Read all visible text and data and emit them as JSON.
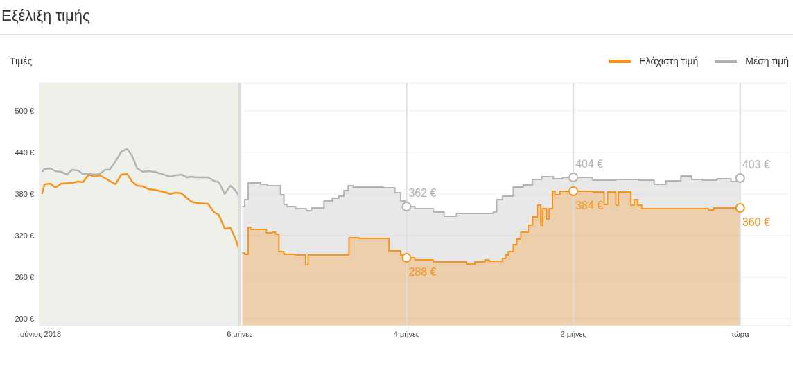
{
  "chart_data": {
    "type": "area",
    "title": "Εξέλιξη τιμής",
    "ylabel": "Τιμές",
    "xlim": [
      -8.4,
      0.6
    ],
    "xticks": [
      {
        "value": -8.4,
        "label": "Ιούνιος 2018"
      },
      {
        "value": -6,
        "label": "6 μήνες"
      },
      {
        "value": -4,
        "label": "4 μήνες"
      },
      {
        "value": -2,
        "label": "2 μήνες"
      },
      {
        "value": 0,
        "label": "τώρα"
      }
    ],
    "ylim": [
      190,
      540
    ],
    "yticks": [
      {
        "value": 200,
        "label": "200 €"
      },
      {
        "value": 260,
        "label": "260 €"
      },
      {
        "value": 320,
        "label": "320 €"
      },
      {
        "value": 380,
        "label": "380 €"
      },
      {
        "value": 440,
        "label": "440 €"
      },
      {
        "value": 500,
        "label": "500 €"
      }
    ],
    "grid": true,
    "legend": "top right",
    "bands": [
      {
        "axis": "x",
        "from": -8.4,
        "to": -6,
        "color": "#f0f0eb"
      }
    ],
    "ref_lines": [
      {
        "axis": "x",
        "value": -6,
        "color": "#dddddd"
      },
      {
        "axis": "x",
        "value": -4,
        "color": "#dddddd"
      },
      {
        "axis": "x",
        "value": -2,
        "color": "#dddddd"
      },
      {
        "axis": "x",
        "value": 0,
        "color": "#dddddd"
      }
    ],
    "annotations": [
      {
        "text": "362 €",
        "x": -4,
        "y": 362
      },
      {
        "text": "288 €",
        "x": -4,
        "y": 288
      },
      {
        "text": "404 €",
        "x": -2,
        "y": 404
      },
      {
        "text": "384 €",
        "x": -2,
        "y": 384
      },
      {
        "text": "403 €",
        "x": 0,
        "y": 403
      },
      {
        "text": "360 €",
        "x": 0,
        "y": 360
      }
    ],
    "series": [
      {
        "name": "Ελάχιστη τιμή",
        "color": "#f7941d",
        "x": [
          -5.97,
          -5.94,
          -5.94,
          -5.9,
          -5.9,
          -5.87,
          -5.87,
          -5.68,
          -5.68,
          -5.61,
          -5.61,
          -5.57,
          -5.57,
          -5.53,
          -5.53,
          -5.47,
          -5.47,
          -5.33,
          -5.33,
          -5.21,
          -5.21,
          -5.18,
          -5.18,
          -4.69,
          -4.69,
          -4.57,
          -4.57,
          -4.21,
          -4.21,
          -4.07,
          -4.07,
          -4,
          -4,
          -3.9,
          -3.9,
          -3.68,
          -3.68,
          -3.28,
          -3.28,
          -3.18,
          -3.18,
          -3.06,
          -3.06,
          -3.01,
          -3.01,
          -2.85,
          -2.85,
          -2.81,
          -2.81,
          -2.78,
          -2.78,
          -2.72,
          -2.72,
          -2.68,
          -2.68,
          -2.63,
          -2.63,
          -2.54,
          -2.54,
          -2.49,
          -2.49,
          -2.43,
          -2.43,
          -2.39,
          -2.39,
          -2.37,
          -2.37,
          -2.32,
          -2.32,
          -2.29,
          -2.29,
          -2.25,
          -2.25,
          -2.22,
          -2.22,
          -2.16,
          -2.16,
          -2,
          -1.77,
          -1.77,
          -1.63,
          -1.63,
          -1.59,
          -1.59,
          -1.49,
          -1.49,
          -1.46,
          -1.46,
          -1.31,
          -1.31,
          -1.27,
          -1.27,
          -1.23,
          -1.23,
          -1.18,
          -1.18,
          -0.38,
          -0.38,
          -0.32,
          -0.32,
          0
        ],
        "values": [
          295,
          295,
          293,
          293,
          332,
          332,
          329,
          329,
          324,
          324,
          325,
          325,
          322,
          322,
          297,
          297,
          293,
          293,
          292,
          292,
          278,
          278,
          292,
          292,
          317,
          317,
          316,
          316,
          298,
          298,
          292,
          292,
          288,
          288,
          285,
          285,
          282,
          282,
          279,
          279,
          282,
          282,
          285,
          285,
          283,
          283,
          287,
          287,
          292,
          292,
          297,
          297,
          307,
          307,
          315,
          315,
          325,
          325,
          335,
          335,
          347,
          347,
          364,
          364,
          335,
          335,
          359,
          359,
          344,
          344,
          359,
          359,
          384,
          384,
          379,
          379,
          384,
          384,
          384,
          383,
          383,
          365,
          365,
          383,
          383,
          364,
          364,
          383,
          383,
          364,
          364,
          372,
          372,
          364,
          364,
          359,
          359,
          357,
          357,
          360,
          360
        ]
      },
      {
        "name": "Μέση τιμή",
        "color": "#b3b3b3",
        "x": [
          -5.97,
          -5.94,
          -5.94,
          -5.9,
          -5.9,
          -5.75,
          -5.75,
          -5.67,
          -5.67,
          -5.51,
          -5.51,
          -5.47,
          -5.47,
          -5.43,
          -5.43,
          -5.33,
          -5.33,
          -5.2,
          -5.2,
          -5.14,
          -5.14,
          -4.99,
          -4.99,
          -4.89,
          -4.89,
          -4.81,
          -4.81,
          -4.75,
          -4.75,
          -4.7,
          -4.7,
          -4.64,
          -4.64,
          -4.28,
          -4.28,
          -4.14,
          -4.14,
          -4.07,
          -4.07,
          -4,
          -4,
          -3.9,
          -3.9,
          -3.68,
          -3.68,
          -3.55,
          -3.55,
          -3.4,
          -3.4,
          -2.96,
          -2.96,
          -2.92,
          -2.92,
          -2.85,
          -2.85,
          -2.72,
          -2.72,
          -2.6,
          -2.6,
          -2.49,
          -2.49,
          -2.38,
          -2.38,
          -2.24,
          -2.24,
          -2.13,
          -2.13,
          -2,
          -1.77,
          -1.77,
          -1.49,
          -1.49,
          -1.22,
          -1.22,
          -1.03,
          -1.03,
          -0.89,
          -0.89,
          -0.71,
          -0.71,
          -0.58,
          -0.58,
          -0.45,
          -0.45,
          -0.28,
          -0.28,
          -0.11,
          -0.11,
          0,
          0
        ],
        "values": [
          362,
          362,
          372,
          372,
          396,
          396,
          394,
          394,
          392,
          392,
          379,
          379,
          365,
          365,
          362,
          362,
          359,
          359,
          356,
          356,
          360,
          360,
          370,
          370,
          374,
          374,
          377,
          377,
          385,
          385,
          392,
          392,
          390,
          390,
          389,
          389,
          382,
          382,
          370,
          370,
          362,
          362,
          359,
          359,
          354,
          354,
          348,
          348,
          352,
          352,
          354,
          354,
          372,
          372,
          377,
          377,
          390,
          390,
          393,
          393,
          401,
          401,
          405,
          405,
          402,
          402,
          404,
          404,
          404,
          400,
          400,
          401,
          401,
          400,
          400,
          394,
          394,
          399,
          399,
          406,
          406,
          401,
          401,
          400,
          400,
          402,
          402,
          398,
          398,
          403
        ]
      },
      {
        "type": "line",
        "color": "#b3b3b3",
        "x": [
          -8.37,
          -8.34,
          -8.27,
          -8.21,
          -8.14,
          -8.07,
          -8.01,
          -7.94,
          -7.88,
          -7.81,
          -7.74,
          -7.68,
          -7.61,
          -7.56,
          -7.49,
          -7.42,
          -7.35,
          -7.29,
          -7.23,
          -7.16,
          -7.09,
          -7.02,
          -6.91,
          -6.83,
          -6.77,
          -6.7,
          -6.63,
          -6.58,
          -6.51,
          -6.38,
          -6.31,
          -6.25,
          -6.18,
          -6.11,
          -6.05,
          -6.01
        ],
        "values": [
          412,
          416,
          417,
          413,
          412,
          408,
          415,
          414,
          409,
          409,
          408,
          409,
          415,
          415,
          427,
          441,
          445,
          435,
          417,
          412,
          413,
          412,
          408,
          405,
          407,
          408,
          404,
          405,
          404,
          404,
          399,
          397,
          380,
          392,
          385,
          377
        ]
      },
      {
        "type": "line",
        "color": "#f7941d",
        "x": [
          -8.37,
          -8.34,
          -8.27,
          -8.21,
          -8.14,
          -8.01,
          -7.94,
          -7.88,
          -7.81,
          -7.74,
          -7.68,
          -7.56,
          -7.49,
          -7.42,
          -7.35,
          -7.29,
          -7.23,
          -7.16,
          -7.09,
          -7.02,
          -6.91,
          -6.83,
          -6.77,
          -6.7,
          -6.63,
          -6.58,
          -6.51,
          -6.38,
          -6.31,
          -6.25,
          -6.18,
          -6.11,
          -6.05,
          -6.01
        ],
        "values": [
          380,
          394,
          395,
          389,
          395,
          396,
          398,
          397,
          408,
          405,
          407,
          399,
          394,
          408,
          409,
          398,
          392,
          391,
          387,
          386,
          383,
          380,
          382,
          381,
          374,
          369,
          367,
          366,
          354,
          350,
          330,
          331,
          315,
          301
        ]
      }
    ]
  }
}
